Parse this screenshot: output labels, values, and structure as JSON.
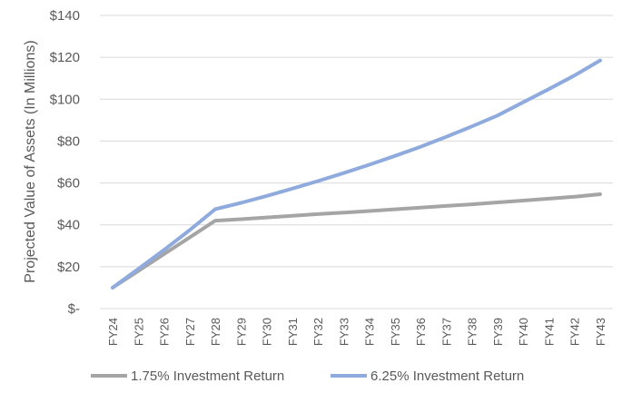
{
  "chart_data": {
    "type": "line",
    "title": "",
    "xlabel": "",
    "ylabel": "Projected Value of Assets (In Millions)",
    "ylim": [
      0,
      140
    ],
    "grid": true,
    "legend_position": "bottom",
    "y_ticks": [
      {
        "value": 0,
        "label": "$-"
      },
      {
        "value": 20,
        "label": "$20"
      },
      {
        "value": 40,
        "label": "$40"
      },
      {
        "value": 60,
        "label": "$60"
      },
      {
        "value": 80,
        "label": "$80"
      },
      {
        "value": 100,
        "label": "$100"
      },
      {
        "value": 120,
        "label": "$120"
      },
      {
        "value": 140,
        "label": "$140"
      }
    ],
    "categories": [
      "FY24",
      "FY25",
      "FY26",
      "FY27",
      "FY28",
      "FY29",
      "FY30",
      "FY31",
      "FY32",
      "FY33",
      "FY34",
      "FY35",
      "FY36",
      "FY37",
      "FY38",
      "FY39",
      "FY40",
      "FY41",
      "FY42",
      "FY43"
    ],
    "series": [
      {
        "name": "1.75% Investment Return",
        "color": "#a5a5a5",
        "values": [
          10,
          18,
          26,
          34,
          42,
          42.7,
          43.5,
          44.3,
          45.1,
          45.8,
          46.6,
          47.4,
          48.2,
          49.0,
          49.8,
          50.7,
          51.6,
          52.5,
          53.4,
          54.6
        ]
      },
      {
        "name": "6.25% Investment Return",
        "color": "#8faadc",
        "values": [
          10,
          19,
          28,
          37.5,
          47.5,
          50.5,
          53.8,
          57.3,
          60.9,
          64.7,
          68.7,
          72.9,
          77.3,
          82.0,
          87.0,
          92.2,
          98.5,
          104.8,
          111.3,
          118.5
        ]
      }
    ]
  }
}
